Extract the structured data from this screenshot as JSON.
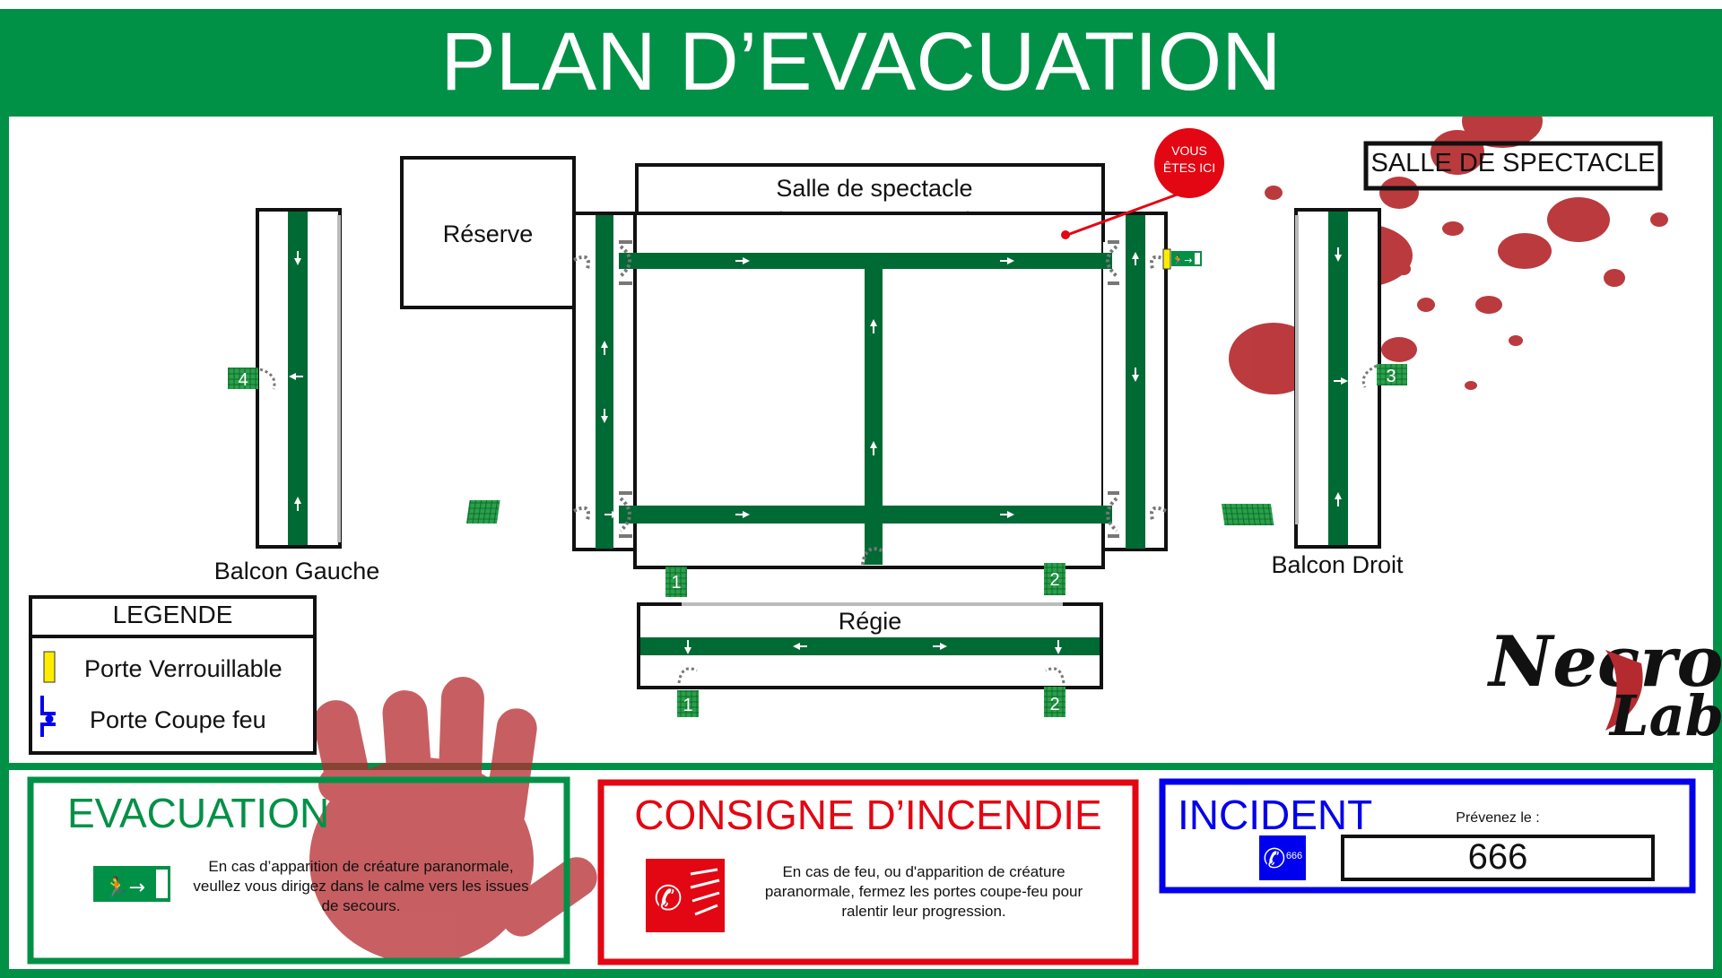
{
  "header": {
    "title": "PLAN D’EVACUATION"
  },
  "plan": {
    "reserve_label": "Réserve",
    "hall_label": "Salle de spectacle",
    "you_are_here": {
      "line1": "VOUS",
      "line2": "ÊTES ICI"
    },
    "room_name_box": "SALLE DE SPECTACLE",
    "balcony_left_label": "Balcon Gauche",
    "balcony_right_label": "Balcon Droit",
    "regie_label": "Régie",
    "exit_numbers": [
      "1",
      "2",
      "3",
      "4"
    ]
  },
  "legend": {
    "title": "LEGENDE",
    "items": [
      {
        "icon": "lockable-door-icon",
        "label": "Porte Verrouillable"
      },
      {
        "icon": "fire-door-icon",
        "label": "Porte Coupe feu"
      }
    ]
  },
  "brand": {
    "line1": "Necro",
    "line2": "Lab"
  },
  "panels": {
    "evacuation": {
      "title": "EVACUATION",
      "text": "En cas d’apparition de créature paranormale, veullez vous dirigez dans le calme vers les issues de secours."
    },
    "fire": {
      "title": "CONSIGNE D’INCENDIE",
      "text": "En cas de feu, ou d'apparition de créature paranormale, fermez les portes coupe-feu pour ralentir leur progression."
    },
    "incident": {
      "title": "INCIDENT",
      "prompt": "Prévenez le :",
      "number": "666",
      "icon_number": "666"
    }
  },
  "colors": {
    "green": "#009147",
    "path_green": "#006a35",
    "red": "#e30613",
    "blue": "#0000ee",
    "blood": "#b52a2e",
    "yellow": "#ffed00"
  }
}
